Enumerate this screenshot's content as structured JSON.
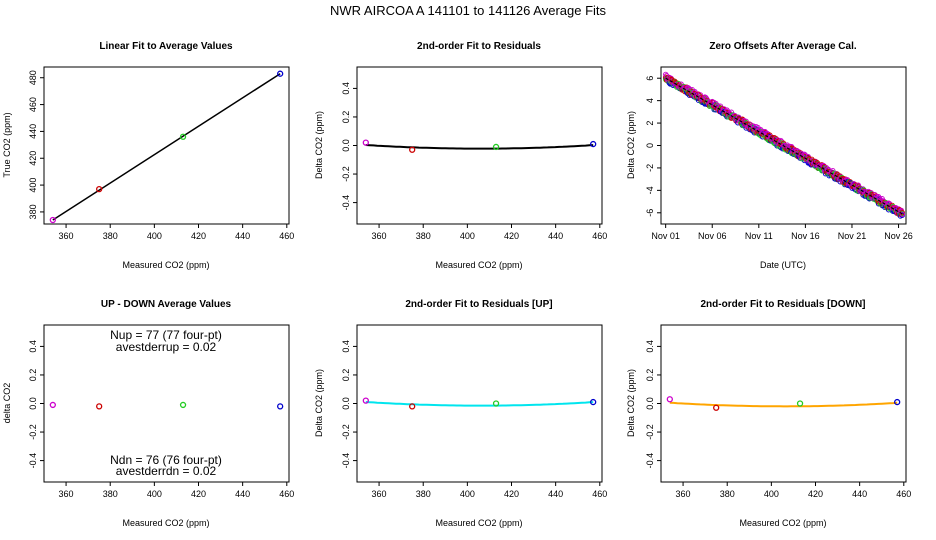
{
  "suptitle": "NWR   AIRCOA A   141101 to 141126   Average Fits",
  "colors": {
    "purple": "#cc00cc",
    "red": "#cc0000",
    "green": "#22cc22",
    "blue": "#0000cc",
    "cyan": "#00e5ee",
    "orange": "#ffa500",
    "black": "#000000"
  },
  "chart_data": [
    {
      "id": "p1",
      "type": "scatter",
      "title": "Linear Fit to Average Values",
      "xlabel": "Measured CO2 (ppm)",
      "ylabel": "True CO2 (ppm)",
      "xlim": [
        350,
        461
      ],
      "ylim": [
        371,
        488
      ],
      "xticks": [
        360,
        380,
        400,
        420,
        440,
        460
      ],
      "yticks": [
        380,
        400,
        420,
        440,
        460,
        480
      ],
      "points": [
        {
          "x": 354,
          "y": 374,
          "color": "purple"
        },
        {
          "x": 375,
          "y": 397,
          "color": "red"
        },
        {
          "x": 413,
          "y": 436,
          "color": "green"
        },
        {
          "x": 457,
          "y": 483,
          "color": "blue"
        }
      ],
      "fit": {
        "kind": "linear",
        "x0": 354,
        "y0": 374,
        "x1": 457,
        "y1": 483,
        "color": "black"
      }
    },
    {
      "id": "p2",
      "type": "scatter",
      "title": "2nd-order Fit to Residuals",
      "xlabel": "Measured CO2 (ppm)",
      "ylabel": "Delta CO2 (ppm)",
      "xlim": [
        350,
        461
      ],
      "ylim": [
        -0.55,
        0.55
      ],
      "xticks": [
        360,
        380,
        400,
        420,
        440,
        460
      ],
      "yticks": [
        -0.4,
        -0.2,
        0.0,
        0.2,
        0.4
      ],
      "points": [
        {
          "x": 354,
          "y": 0.02,
          "color": "purple"
        },
        {
          "x": 375,
          "y": -0.03,
          "color": "red"
        },
        {
          "x": 413,
          "y": -0.01,
          "color": "green"
        },
        {
          "x": 457,
          "y": 0.01,
          "color": "blue"
        }
      ],
      "fit": {
        "kind": "quadratic",
        "xmin": 354,
        "xmax": 457,
        "a": 9.5e-06,
        "xc": 406,
        "c": -0.022,
        "color": "black"
      }
    },
    {
      "id": "p3",
      "type": "scatter",
      "title": "Zero Offsets After Average Cal.",
      "xlabel": "Date (UTC)",
      "ylabel": "Delta CO2 (ppm)",
      "xlim": [
        0,
        26.3
      ],
      "ylim": [
        -7,
        7
      ],
      "xticks": [
        0.5,
        5.5,
        10.5,
        15.5,
        20.5,
        25.5
      ],
      "xticklabels": [
        "Nov 01",
        "Nov 06",
        "Nov 11",
        "Nov 16",
        "Nov 21",
        "Nov 26"
      ],
      "yticks": [
        -6,
        -4,
        -2,
        0,
        2,
        4,
        6
      ],
      "trend": {
        "x0": 0.5,
        "y0": 6.0,
        "x1": 25.9,
        "y1": -6.1,
        "scatter": 0.25
      },
      "series_colors": [
        "blue",
        "green",
        "red",
        "purple"
      ]
    },
    {
      "id": "p4",
      "type": "scatter",
      "title": "UP - DOWN Average Values",
      "xlabel": "Measured CO2 (ppm)",
      "ylabel": "delta CO2",
      "xlim": [
        350,
        461
      ],
      "ylim": [
        -0.55,
        0.55
      ],
      "xticks": [
        360,
        380,
        400,
        420,
        440,
        460
      ],
      "yticks": [
        -0.4,
        -0.2,
        0.0,
        0.2,
        0.4
      ],
      "points": [
        {
          "x": 354,
          "y": -0.01,
          "color": "purple"
        },
        {
          "x": 375,
          "y": -0.02,
          "color": "red"
        },
        {
          "x": 413,
          "y": -0.01,
          "color": "green"
        },
        {
          "x": 457,
          "y": -0.02,
          "color": "blue"
        }
      ],
      "annotations_top": [
        "Nup = 77 (77 four-pt)",
        "avestderrup =  0.02"
      ],
      "annotations_bottom": [
        "Ndn = 76 (76 four-pt)",
        "avestderrdn =  0.02"
      ]
    },
    {
      "id": "p5",
      "type": "scatter",
      "title": "2nd-order Fit to Residuals [UP]",
      "xlabel": "Measured CO2 (ppm)",
      "ylabel": "Delta CO2 (ppm)",
      "xlim": [
        350,
        461
      ],
      "ylim": [
        -0.55,
        0.55
      ],
      "xticks": [
        360,
        380,
        400,
        420,
        440,
        460
      ],
      "yticks": [
        -0.4,
        -0.2,
        0.0,
        0.2,
        0.4
      ],
      "points": [
        {
          "x": 354,
          "y": 0.02,
          "color": "purple"
        },
        {
          "x": 375,
          "y": -0.02,
          "color": "red"
        },
        {
          "x": 413,
          "y": 0.0,
          "color": "green"
        },
        {
          "x": 457,
          "y": 0.01,
          "color": "blue"
        }
      ],
      "fit": {
        "kind": "quadratic",
        "xmin": 354,
        "xmax": 457,
        "a": 9.5e-06,
        "xc": 406,
        "c": -0.015,
        "color": "cyan"
      }
    },
    {
      "id": "p6",
      "type": "scatter",
      "title": "2nd-order Fit to Residuals [DOWN]",
      "xlabel": "Measured CO2 (ppm)",
      "ylabel": "Delta CO2 (ppm)",
      "xlim": [
        350,
        461
      ],
      "ylim": [
        -0.55,
        0.55
      ],
      "xticks": [
        360,
        380,
        400,
        420,
        440,
        460
      ],
      "yticks": [
        -0.4,
        -0.2,
        0.0,
        0.2,
        0.4
      ],
      "points": [
        {
          "x": 354,
          "y": 0.03,
          "color": "purple"
        },
        {
          "x": 375,
          "y": -0.03,
          "color": "red"
        },
        {
          "x": 413,
          "y": 0.0,
          "color": "green"
        },
        {
          "x": 457,
          "y": 0.01,
          "color": "blue"
        }
      ],
      "fit": {
        "kind": "quadratic",
        "xmin": 354,
        "xmax": 457,
        "a": 9.5e-06,
        "xc": 406,
        "c": -0.02,
        "color": "orange"
      }
    }
  ]
}
